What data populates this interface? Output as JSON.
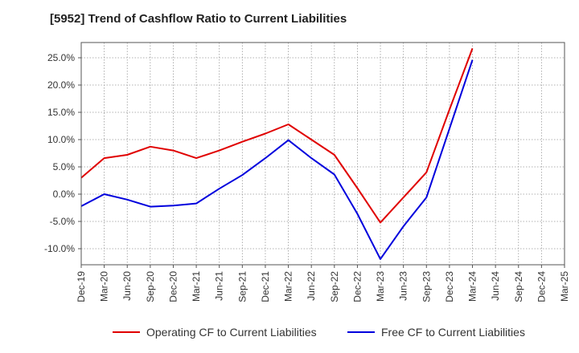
{
  "chart_data": {
    "type": "line",
    "title": "[5952]  Trend of Cashflow Ratio to Current Liabilities",
    "xlabel": "",
    "ylabel": "",
    "categories": [
      "Dec-19",
      "Mar-20",
      "Jun-20",
      "Sep-20",
      "Dec-20",
      "Mar-21",
      "Jun-21",
      "Sep-21",
      "Dec-21",
      "Mar-22",
      "Jun-22",
      "Sep-22",
      "Dec-22",
      "Mar-23",
      "Jun-23",
      "Sep-23",
      "Dec-23",
      "Mar-24",
      "Jun-24",
      "Sep-24",
      "Dec-24",
      "Mar-25"
    ],
    "y_ticks": [
      "25.0%",
      "20.0%",
      "15.0%",
      "10.0%",
      "5.0%",
      "0.0%",
      "-5.0%",
      "-10.0%"
    ],
    "ylim": [
      -13,
      28
    ],
    "grid": true,
    "legend_position": "bottom",
    "series": [
      {
        "name": "Operating CF to Current Liabilities",
        "color": "#e00000",
        "values": [
          3.0,
          6.6,
          7.2,
          8.7,
          8.0,
          6.6,
          8.0,
          9.6,
          11.1,
          12.8,
          10.0,
          7.2,
          1.1,
          -5.2,
          -0.6,
          4.0,
          15.5,
          26.7,
          null,
          null,
          null,
          null
        ]
      },
      {
        "name": "Free CF to Current Liabilities",
        "color": "#0000dd",
        "values": [
          -2.2,
          0.0,
          -1.0,
          -2.3,
          -2.1,
          -1.7,
          1.0,
          3.5,
          6.6,
          9.9,
          6.6,
          3.6,
          -3.6,
          -11.9,
          -5.9,
          -0.6,
          12.0,
          24.6,
          null,
          null,
          null,
          null
        ]
      }
    ]
  }
}
